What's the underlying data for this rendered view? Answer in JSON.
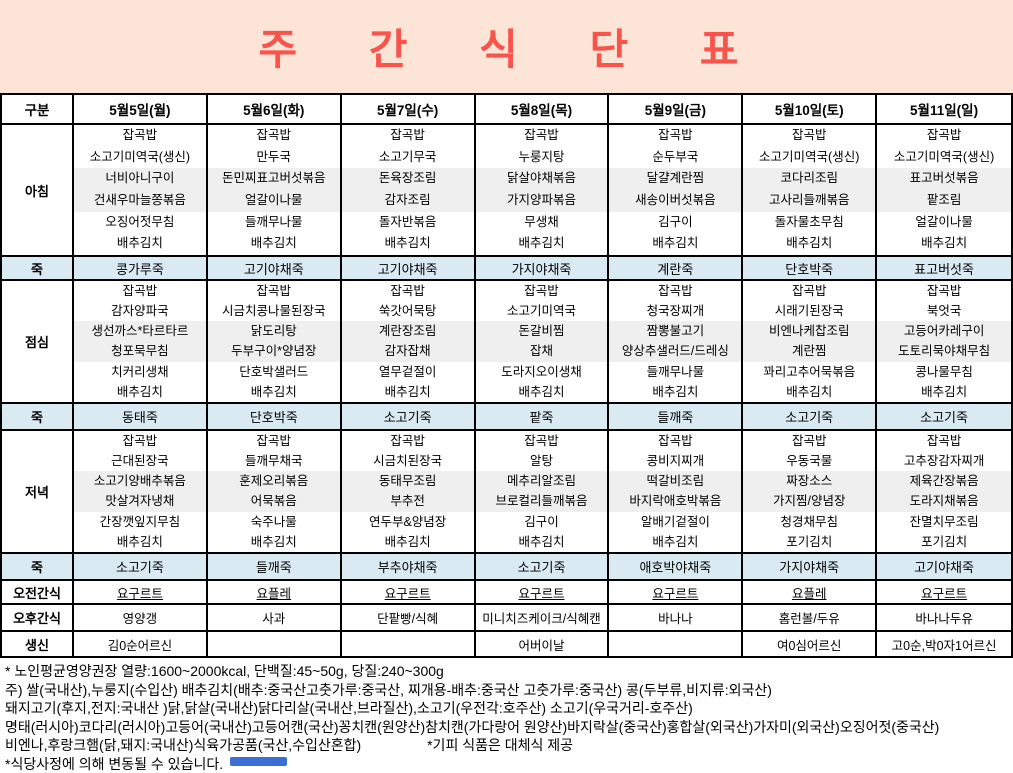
{
  "title": "주 간 식 단 표",
  "table": {
    "corner_label": "구분",
    "row_labels": {
      "breakfast": "아침",
      "porridge": "죽",
      "lunch": "점심",
      "dinner": "저녁",
      "am_snack": "오전간식",
      "pm_snack": "오후간식",
      "birthday": "생신"
    },
    "days": [
      {
        "date": "5월5일(월)",
        "breakfast": [
          "잡곡밥",
          "소고기미역국(생신)",
          "너비아니구이",
          "건새우마늘쫑볶음",
          "오징어젓무침",
          "배추김치"
        ],
        "porridge1": "콩가루죽",
        "lunch": [
          "잡곡밥",
          "감자양파국",
          "생선까스*타르타르",
          "청포묵무침",
          "치커리생채",
          "배추김치"
        ],
        "porridge2": "동태죽",
        "dinner": [
          "잡곡밥",
          "근대된장국",
          "소고기양배추볶음",
          "맛살겨자냉채",
          "간장깻잎지무침",
          "배추김치"
        ],
        "porridge3": "소고기죽",
        "am_snack": "요구르트",
        "pm_snack": "영양갱",
        "birthday": "김0순어르신"
      },
      {
        "date": "5월6일(화)",
        "breakfast": [
          "잡곡밥",
          "만두국",
          "돈민찌표고버섯볶음",
          "얼갈이나물",
          "들깨무나물",
          "배추김치"
        ],
        "porridge1": "고기야채죽",
        "lunch": [
          "잡곡밥",
          "시금치콩나물된장국",
          "닭도리탕",
          "두부구이*양념장",
          "단호박샐러드",
          "배추김치"
        ],
        "porridge2": "단호박죽",
        "dinner": [
          "잡곡밥",
          "들깨무채국",
          "훈제오리볶음",
          "어묵볶음",
          "숙주나물",
          "배추김치"
        ],
        "porridge3": "들깨죽",
        "am_snack": "요플레",
        "pm_snack": "사과",
        "birthday": ""
      },
      {
        "date": "5월7일(수)",
        "breakfast": [
          "잡곡밥",
          "소고기무국",
          "돈육장조림",
          "감자조림",
          "돌자반볶음",
          "배추김치"
        ],
        "porridge1": "고기야채죽",
        "lunch": [
          "잡곡밥",
          "쑥갓어묵탕",
          "계란장조림",
          "감자잡채",
          "열무겉절이",
          "배추김치"
        ],
        "porridge2": "소고기죽",
        "dinner": [
          "잡곡밥",
          "시금치된장국",
          "동태무조림",
          "부추전",
          "연두부&양념장",
          "배추김치"
        ],
        "porridge3": "부추야채죽",
        "am_snack": "요구르트",
        "pm_snack": "단팥빵/식혜",
        "birthday": ""
      },
      {
        "date": "5월8일(목)",
        "breakfast": [
          "잡곡밥",
          "누룽지탕",
          "닭살야채볶음",
          "가지양파볶음",
          "무생채",
          "배추김치"
        ],
        "porridge1": "가지야채죽",
        "lunch": [
          "잡곡밥",
          "소고기미역국",
          "돈갈비찜",
          "잡채",
          "도라지오이생채",
          "배추김치"
        ],
        "porridge2": "팥죽",
        "dinner": [
          "잡곡밥",
          "알탕",
          "메추리알조림",
          "브로컬리들깨볶음",
          "김구이",
          "배추김치"
        ],
        "porridge3": "소고기죽",
        "am_snack": "요구르트",
        "pm_snack": "미니치즈케이크/식혜캔",
        "birthday": "어버이날"
      },
      {
        "date": "5월9일(금)",
        "breakfast": [
          "잡곡밥",
          "순두부국",
          "달걀계란찜",
          "새송이버섯볶음",
          "김구이",
          "배추김치"
        ],
        "porridge1": "계란죽",
        "lunch": [
          "잡곡밥",
          "청국장찌개",
          "짬뽕불고기",
          "양상추샐러드/드레싱",
          "들깨무나물",
          "배추김치"
        ],
        "porridge2": "들깨죽",
        "dinner": [
          "잡곡밥",
          "콩비지찌개",
          "떡갈비조림",
          "바지락애호박볶음",
          "알배기겉절이",
          "배추김치"
        ],
        "porridge3": "애호박야채죽",
        "am_snack": "요구르트",
        "pm_snack": "바나나",
        "birthday": ""
      },
      {
        "date": "5월10일(토)",
        "breakfast": [
          "잡곡밥",
          "소고기미역국(생신)",
          "코다리조림",
          "고사리들깨볶음",
          "돌자물초무침",
          "배추김치"
        ],
        "porridge1": "단호박죽",
        "lunch": [
          "잡곡밥",
          "시래기된장국",
          "비엔나케찹조림",
          "계란찜",
          "꽈리고추어묵볶음",
          "배추김치"
        ],
        "porridge2": "소고기죽",
        "dinner": [
          "잡곡밥",
          "우동국물",
          "짜장소스",
          "가지찜/양념장",
          "청경채무침",
          "포기김치"
        ],
        "porridge3": "가지야채죽",
        "am_snack": "요플레",
        "pm_snack": "홈런볼/두유",
        "birthday": "여0심어르신"
      },
      {
        "date": "5월11일(일)",
        "breakfast": [
          "잡곡밥",
          "소고기미역국(생신)",
          "표고버섯볶음",
          "팥조림",
          "얼갈이나물",
          "배추김치"
        ],
        "porridge1": "표고버섯죽",
        "lunch": [
          "잡곡밥",
          "북엇국",
          "고등어카레구이",
          "도토리묵야채무침",
          "콩나물무침",
          "배추김치"
        ],
        "porridge2": "소고기죽",
        "dinner": [
          "잡곡밥",
          "고추장감자찌개",
          "제육간장볶음",
          "도라지채볶음",
          "잔멸치무조림",
          "포기김치"
        ],
        "porridge3": "고기야채죽",
        "am_snack": "요구르트",
        "pm_snack": "바나나두유",
        "birthday": "고0순,박0자1어르신"
      }
    ]
  },
  "footer": {
    "line1": "* 노인평균영양권장 열량:1600~2000kcal, 단백질:45~50g, 당질:240~300g",
    "line2": "주) 쌀(국내산),누룽지(수입산) 배추김치(배추:중국산고춧가루:중국산, 찌개용-배추:중국산 고춧가루:중국산) 콩(두부류,비지류:외국산)",
    "line3": "돼지고기(후지,전지:국내산 )닭,닭살(국내산)닭다리살(국내산,브라질산),소고기(우전각:호주산) 소고기(우국거리-호주산)",
    "line4": "명태(러시아)코다리(러시아)고등어(국내산)고등어캔(국산)꽁치캔(원양산)참치캔(가다랑어 원양산)바지락살(중국산)홍합살(외국산)가자미(외국산)오징어젓(중국산)",
    "line5_left": "비엔나,후랑크햄(닭,돼지:국내산)식육가공품(국산,수입산혼합)",
    "line5_right": "*기피 식품은 대체식 제공",
    "line6": "*식당사정에 의해 변동될 수 있습니다."
  },
  "colors": {
    "title-bg": "#fce4d6",
    "title-text": "#f8544c",
    "porridge-row-bg": "#daeaf3",
    "stripe-bg": "#efefef",
    "grid-line": "#000000",
    "bottom-blue-mark": "#3b6fd6"
  }
}
